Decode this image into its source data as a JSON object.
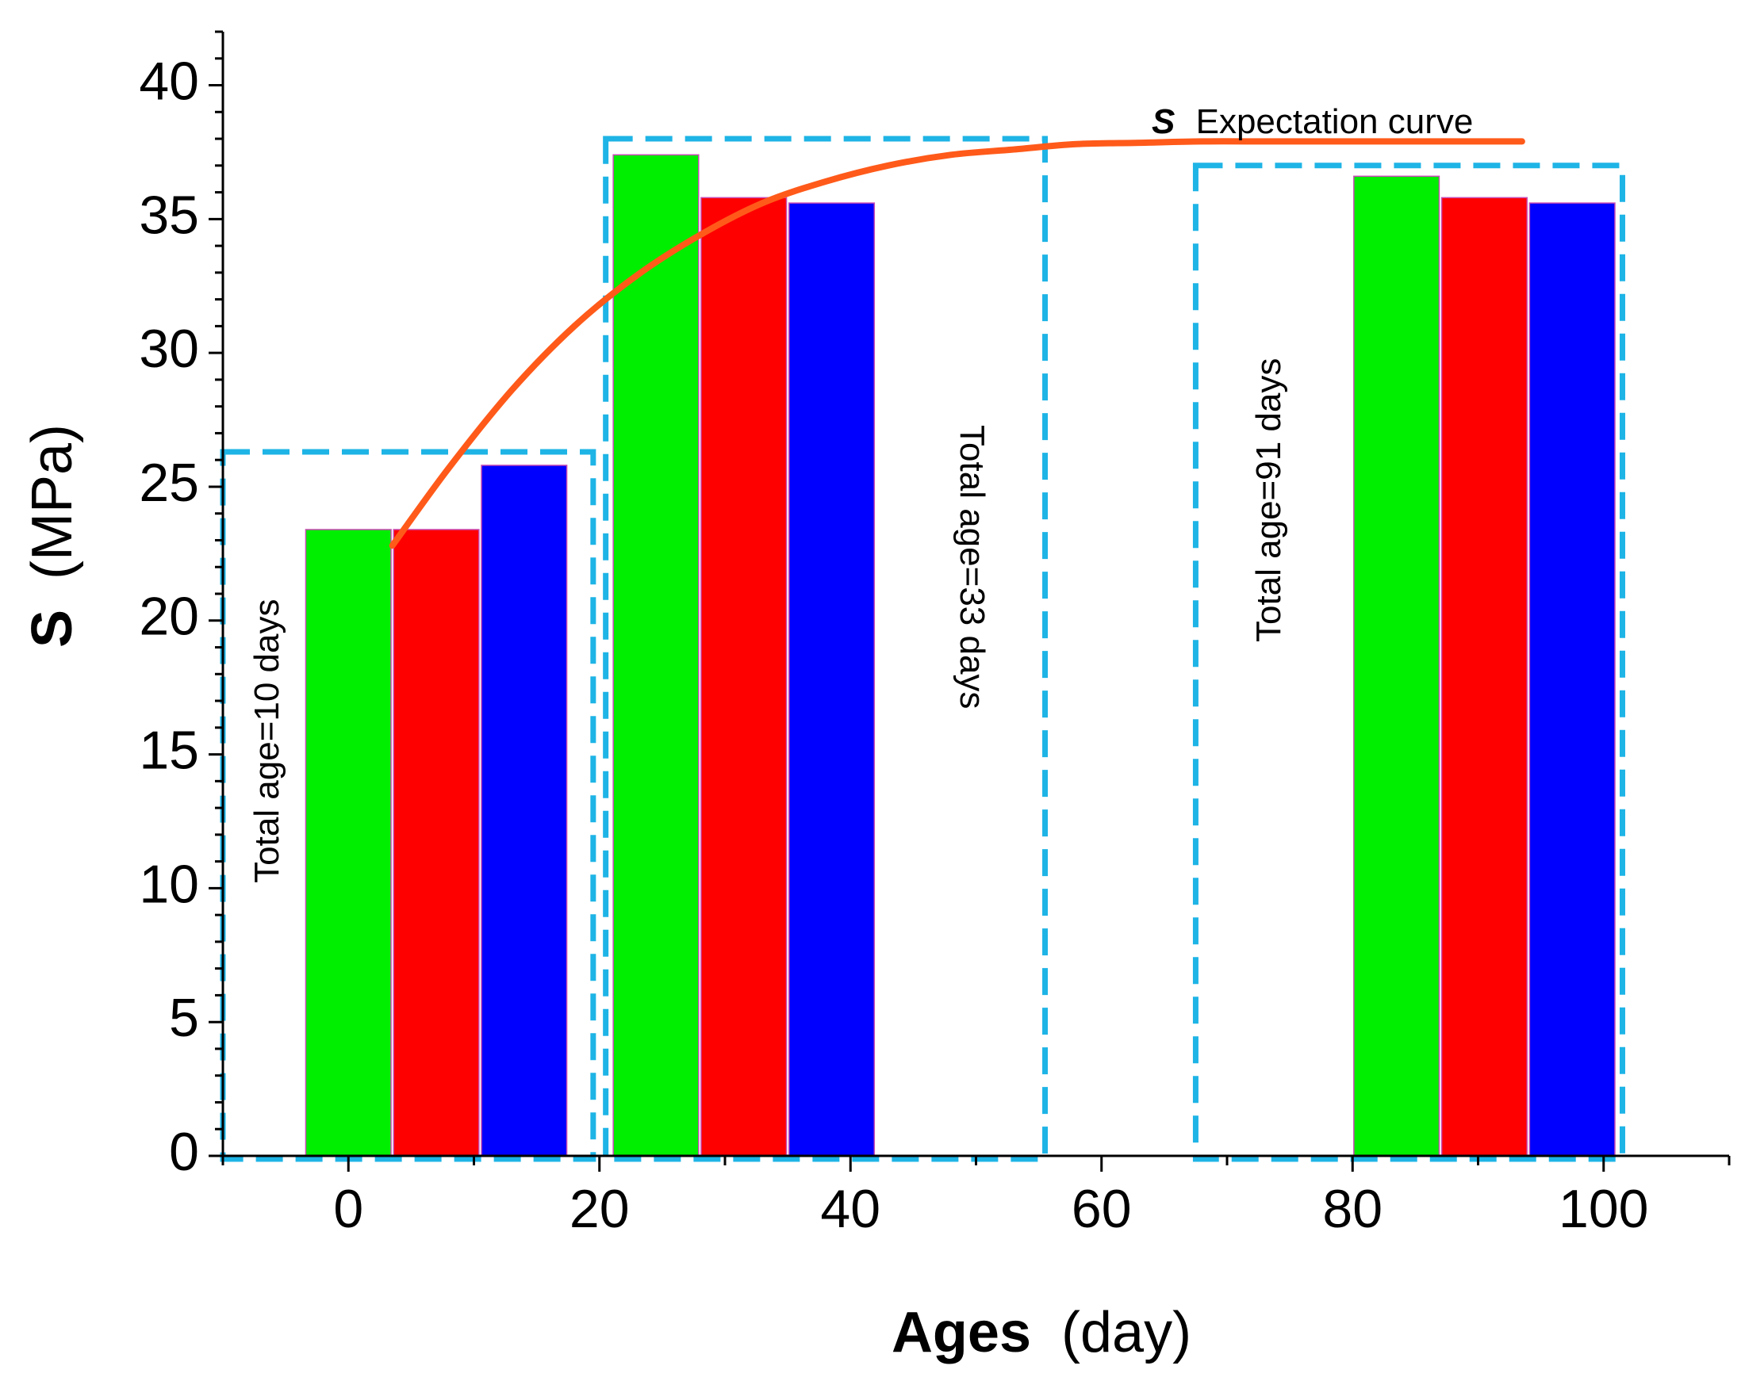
{
  "chart_data": {
    "type": "bar",
    "xlabel_bold": "Ages",
    "xlabel_unit": "(day)",
    "ylabel_bold": "S",
    "ylabel_unit": "(MPa)",
    "xlim": [
      -10,
      110
    ],
    "ylim": [
      0,
      42
    ],
    "xticks": [
      0,
      20,
      40,
      60,
      80,
      100
    ],
    "yticks": [
      0,
      5,
      10,
      15,
      20,
      25,
      30,
      35,
      40
    ],
    "bar_width_days": 6.8,
    "groups": [
      {
        "box_label": "Total age=10 days",
        "box_x": [
          -10,
          19.5
        ],
        "box_ymax": 26.3,
        "label_rotation": -90,
        "bars": [
          {
            "x": 0,
            "value": 23.4,
            "color": "#00ee00"
          },
          {
            "x": 7,
            "value": 23.4,
            "color": "#ff0000"
          },
          {
            "x": 14,
            "value": 25.8,
            "color": "#0000ff"
          }
        ]
      },
      {
        "box_label": "Total age=33 days",
        "box_x": [
          20.5,
          55.5
        ],
        "box_ymax": 38,
        "label_rotation": 90,
        "bars": [
          {
            "x": 24.5,
            "value": 37.4,
            "color": "#00ee00"
          },
          {
            "x": 31.5,
            "value": 35.8,
            "color": "#ff0000"
          },
          {
            "x": 38.5,
            "value": 35.6,
            "color": "#0000ff"
          }
        ]
      },
      {
        "box_label": "Total age=91 days",
        "box_x": [
          67.5,
          101.5
        ],
        "box_ymax": 37,
        "label_rotation": -90,
        "bars": [
          {
            "x": 83.5,
            "value": 36.6,
            "color": "#00ee00"
          },
          {
            "x": 90.5,
            "value": 35.8,
            "color": "#ff0000"
          },
          {
            "x": 97.5,
            "value": 35.6,
            "color": "#0000ff"
          }
        ]
      }
    ],
    "curve": {
      "name": "Expectation curve",
      "name_prefix": "S",
      "color": "#ff5a1a",
      "x": [
        3.5,
        8,
        13,
        18,
        23,
        28,
        33,
        38,
        43,
        48,
        53,
        58,
        63,
        68,
        73,
        78,
        83,
        88,
        93.5
      ],
      "y": [
        22.8,
        25.7,
        28.6,
        31.0,
        32.9,
        34.4,
        35.6,
        36.4,
        37.0,
        37.4,
        37.6,
        37.8,
        37.85,
        37.9,
        37.9,
        37.9,
        37.9,
        37.9,
        37.9
      ]
    },
    "box_color": "#1eb4e6"
  }
}
